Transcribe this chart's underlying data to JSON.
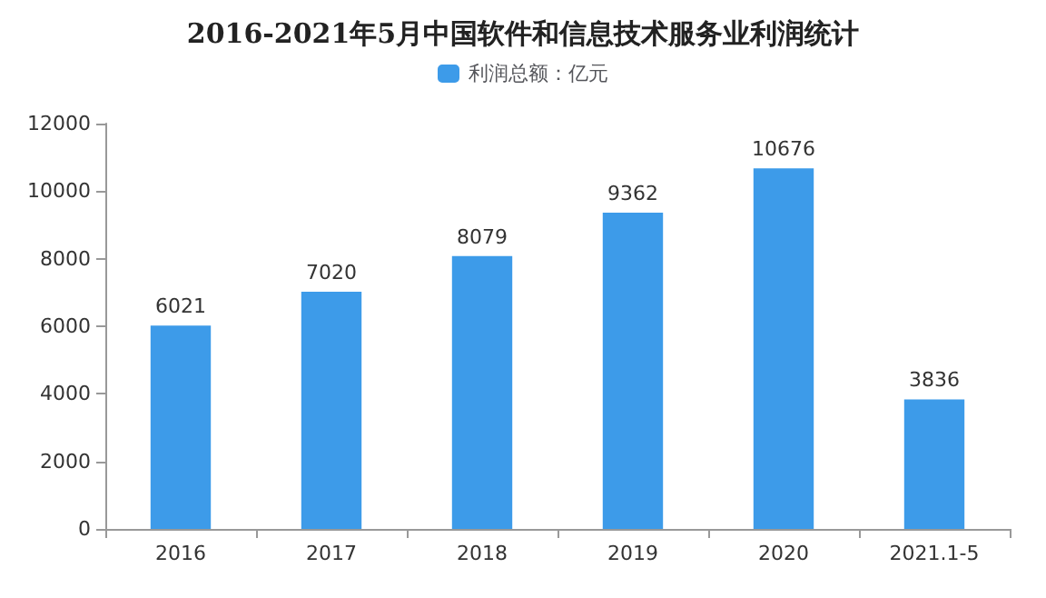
{
  "chart_data": {
    "type": "bar",
    "title": "2016-2021年5月中国软件和信息技术服务业利润统计",
    "categories": [
      "2016",
      "2017",
      "2018",
      "2019",
      "2020",
      "2021.1-5"
    ],
    "series": [
      {
        "name": "利润总额：亿元",
        "color": "#3d9be9",
        "values": [
          6021,
          7020,
          8079,
          9362,
          10676,
          3836
        ]
      }
    ],
    "ylim": [
      0,
      12000
    ],
    "yticks": [
      0,
      2000,
      4000,
      6000,
      8000,
      10000,
      12000
    ],
    "data_labels": true,
    "legend": "top",
    "grid": false
  }
}
